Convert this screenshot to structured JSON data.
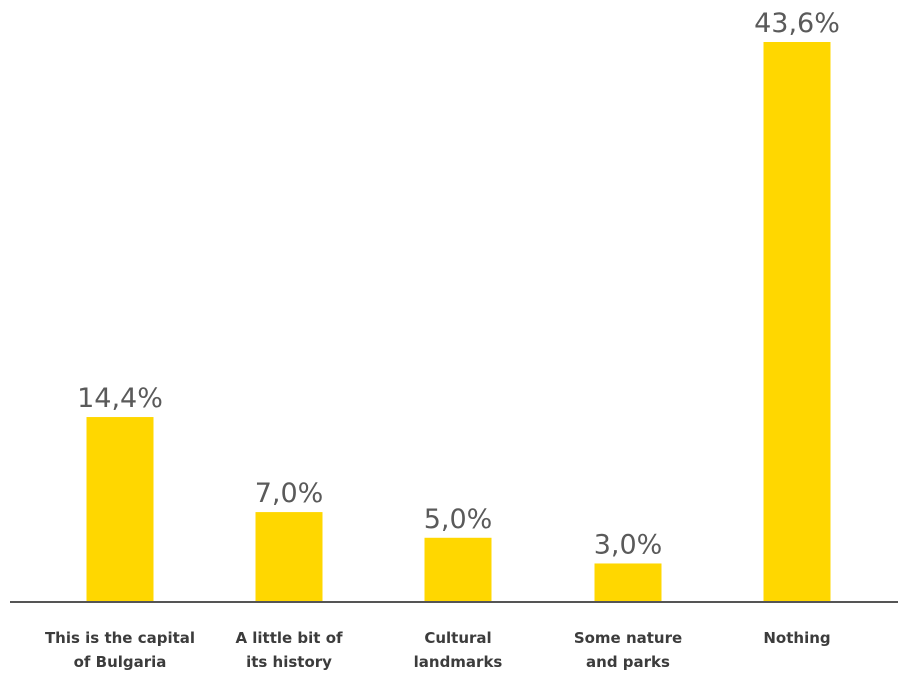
{
  "chart_data": {
    "type": "bar",
    "categories": [
      [
        "This is the capital",
        "of Bulgaria"
      ],
      [
        "A little bit of",
        "its history"
      ],
      [
        "Cultural",
        "landmarks"
      ],
      [
        "Some nature",
        "and parks"
      ],
      [
        "Nothing"
      ]
    ],
    "values": [
      14.4,
      7.0,
      5.0,
      3.0,
      43.6
    ],
    "data_labels": [
      "14,4%",
      "7,0%",
      "5,0%",
      "3,0%",
      "43,6%"
    ],
    "ylim": [
      0,
      43.6
    ],
    "bar_color": "#FFD700",
    "axis_color": "#555555",
    "grid": false,
    "legend": "none"
  }
}
